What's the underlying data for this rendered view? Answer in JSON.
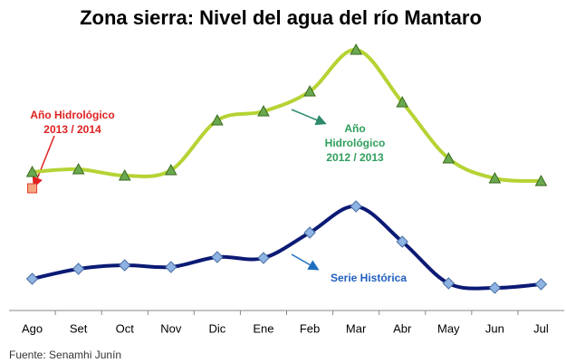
{
  "chart_data": {
    "type": "line",
    "title": "Zona sierra: Nivel del agua del río Mantaro",
    "source": "Fuente: Senamhi Junín",
    "categories": [
      "Ago",
      "Set",
      "Oct",
      "Nov",
      "Dic",
      "Ene",
      "Feb",
      "Mar",
      "Abr",
      "May",
      "Jun",
      "Jul"
    ],
    "ylim": [
      0,
      300
    ],
    "series": [
      {
        "name": [
          "Año",
          "Hidrológico",
          "2012 / 2013"
        ],
        "color": "#b5d334",
        "marker": "triangle",
        "marker_color": "#6aa84f",
        "label_color": "#2e9e5a",
        "values": [
          153,
          156,
          149,
          155,
          210,
          220,
          242,
          288,
          230,
          168,
          146,
          143
        ]
      },
      {
        "name": [
          "Serie Histórica"
        ],
        "color": "#0b1a74",
        "marker": "diamond",
        "marker_color": "#8fb4e3",
        "label_color": "#1f5fbf",
        "values": [
          35,
          46,
          50,
          48,
          59,
          58,
          86,
          115,
          76,
          30,
          25,
          29
        ]
      },
      {
        "name": [
          "Año Hidrológico",
          "2013 / 2014"
        ],
        "color": "#e03a2a",
        "marker": "square",
        "marker_color": "#f4a582",
        "label_color": "#e02020",
        "values": [
          135,
          null,
          null,
          null,
          null,
          null,
          null,
          null,
          null,
          null,
          null,
          null
        ]
      }
    ]
  }
}
